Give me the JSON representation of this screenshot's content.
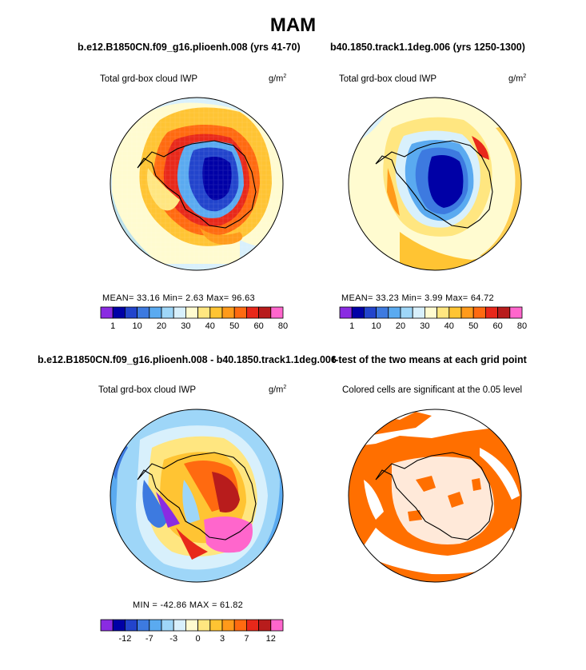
{
  "title": "MAM",
  "panels": [
    {
      "case": "b.e12.B1850CN.f09_g16.plioenh.008 (yrs 41-70)",
      "variable": "Total grd-box cloud IWP",
      "units": "g/m",
      "units_exp": "2",
      "stats": "MEAN=   33.16   Min=    2.63   Max=   96.63"
    },
    {
      "case": "b40.1850.track1.1deg.006 (yrs 1250-1300)",
      "variable": "Total grd-box cloud IWP",
      "units": "g/m",
      "units_exp": "2",
      "stats": "MEAN=   33.23   Min=    3.99   Max=   64.72"
    },
    {
      "case": "b.e12.B1850CN.f09_g16.plioenh.008 - b40.1850.track1.1deg.006",
      "variable": "Total grd-box cloud IWP",
      "units": "g/m",
      "units_exp": "2",
      "stats": "MIN = -42.86 MAX =  61.82"
    },
    {
      "case": "t-test of the two means at each grid point",
      "variable": "Colored cells are significant at the 0.05 level"
    }
  ],
  "colorbars": {
    "field_colors": [
      "#8a2be2",
      "#0000a6",
      "#2244cc",
      "#3d7ae0",
      "#5aaaf0",
      "#9ed6f8",
      "#d8f0fc",
      "#fffbd0",
      "#ffe680",
      "#ffc433",
      "#ff9a1a",
      "#ff6a10",
      "#e8281a",
      "#b81c1c",
      "#ff66cc"
    ],
    "field_labels": [
      "1",
      "10",
      "20",
      "30",
      "40",
      "50",
      "60",
      "80"
    ],
    "diff_labels": [
      "-12",
      "-7",
      "-3",
      "0",
      "3",
      "7",
      "12"
    ]
  },
  "significance_color": "#ff6f00"
}
